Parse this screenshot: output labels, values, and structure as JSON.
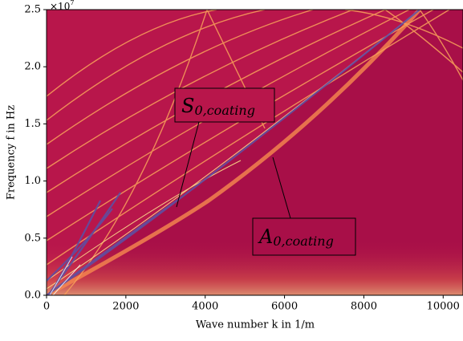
{
  "chart_data": {
    "type": "heatmap",
    "x_label": "Wave number k in 1/m",
    "y_label": "Frequency f in Hz",
    "y_offset_base": "×10",
    "y_offset_exponent": "7",
    "xlim": [
      0,
      10500
    ],
    "ylim": [
      0,
      2.5
    ],
    "xticks": [
      0,
      2000,
      4000,
      6000,
      8000,
      10000
    ],
    "yticks": [
      {
        "value": 0,
        "label": "0.0"
      },
      0.5,
      {
        "value": 1,
        "label": "1.0"
      },
      1.5,
      {
        "value": 2,
        "label": "2.0"
      },
      2.5
    ],
    "annotations": [
      {
        "text": "S",
        "subscript": "0,coating"
      },
      {
        "text": "A",
        "subscript": "0,coating"
      }
    ]
  }
}
